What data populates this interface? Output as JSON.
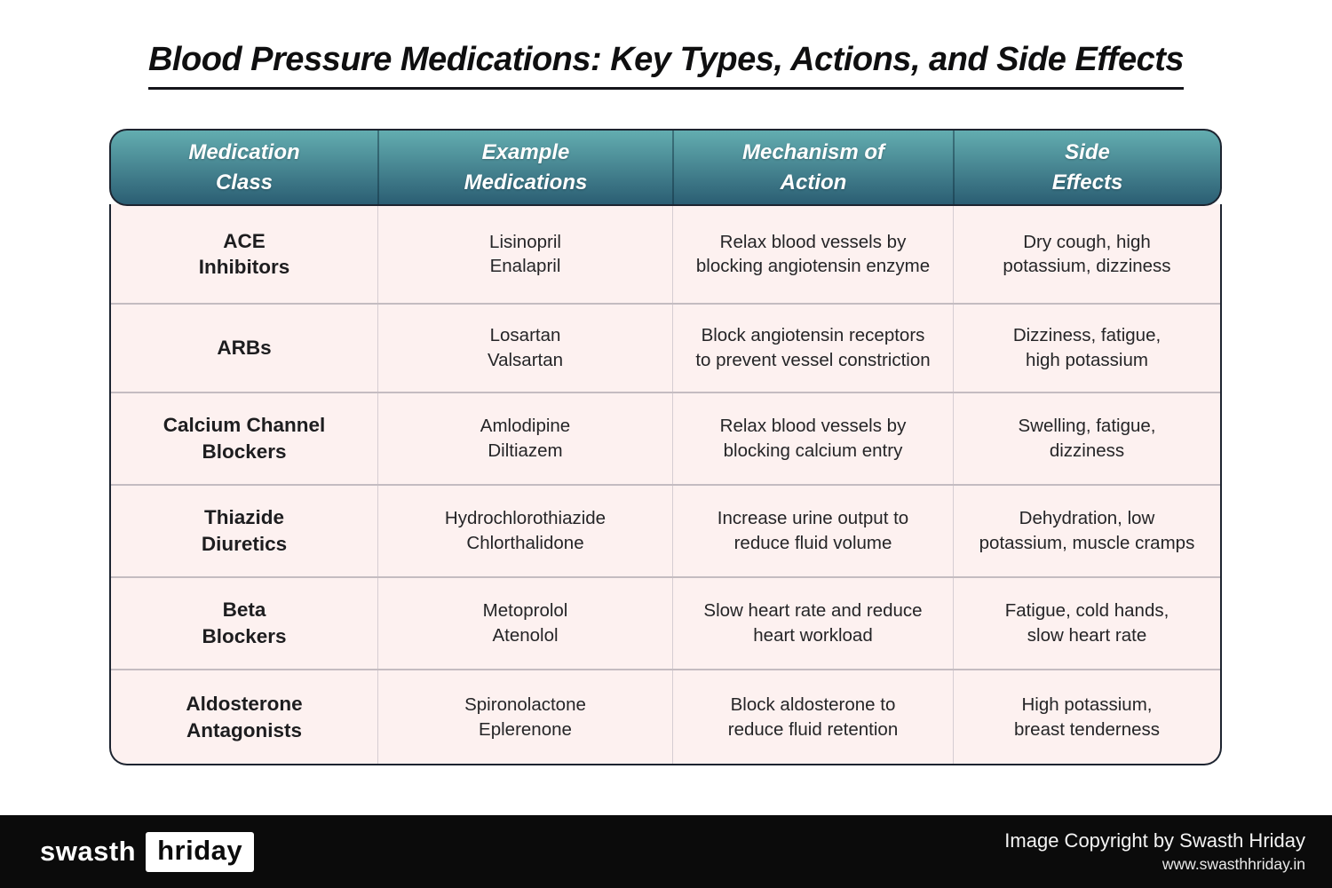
{
  "title": "Blood Pressure Medications: Key Types, Actions, and Side Effects",
  "colors": {
    "header_gradient_top": "#63adb0",
    "header_gradient_bottom": "#2b5e73",
    "cell_background": "#fdf1f0",
    "table_border": "#1d2430",
    "footer_background": "#0b0b0b"
  },
  "chart_data": {
    "type": "table",
    "title": "Blood Pressure Medications: Key Types, Actions, and Side Effects",
    "columns": [
      "Medication\nClass",
      "Example\nMedications",
      "Mechanism of\nAction",
      "Side\nEffects"
    ],
    "rows": [
      [
        "ACE\nInhibitors",
        "Lisinopril\nEnalapril",
        "Relax blood vessels by\nblocking angiotensin enzyme",
        "Dry cough, high\npotassium, dizziness"
      ],
      [
        "ARBs",
        "Losartan\nValsartan",
        "Block angiotensin receptors\nto prevent vessel constriction",
        "Dizziness, fatigue,\nhigh potassium"
      ],
      [
        "Calcium Channel\nBlockers",
        "Amlodipine\nDiltiazem",
        "Relax blood vessels by\nblocking calcium entry",
        "Swelling, fatigue,\ndizziness"
      ],
      [
        "Thiazide\nDiuretics",
        "Hydrochlorothiazide\nChlorthalidone",
        "Increase urine output to\nreduce fluid volume",
        "Dehydration, low\npotassium, muscle cramps"
      ],
      [
        "Beta\nBlockers",
        "Metoprolol\nAtenolol",
        "Slow heart rate and reduce\nheart workload",
        "Fatigue, cold hands,\nslow heart rate"
      ],
      [
        "Aldosterone\nAntagonists",
        "Spironolactone\nEplerenone",
        "Block aldosterone to\nreduce fluid retention",
        "High potassium,\nbreast tenderness"
      ]
    ]
  },
  "footer": {
    "logo_part1": "swasth",
    "logo_part2": "hriday",
    "copyright": "Image Copyright by Swasth Hriday",
    "website": "www.swasthhriday.in"
  }
}
